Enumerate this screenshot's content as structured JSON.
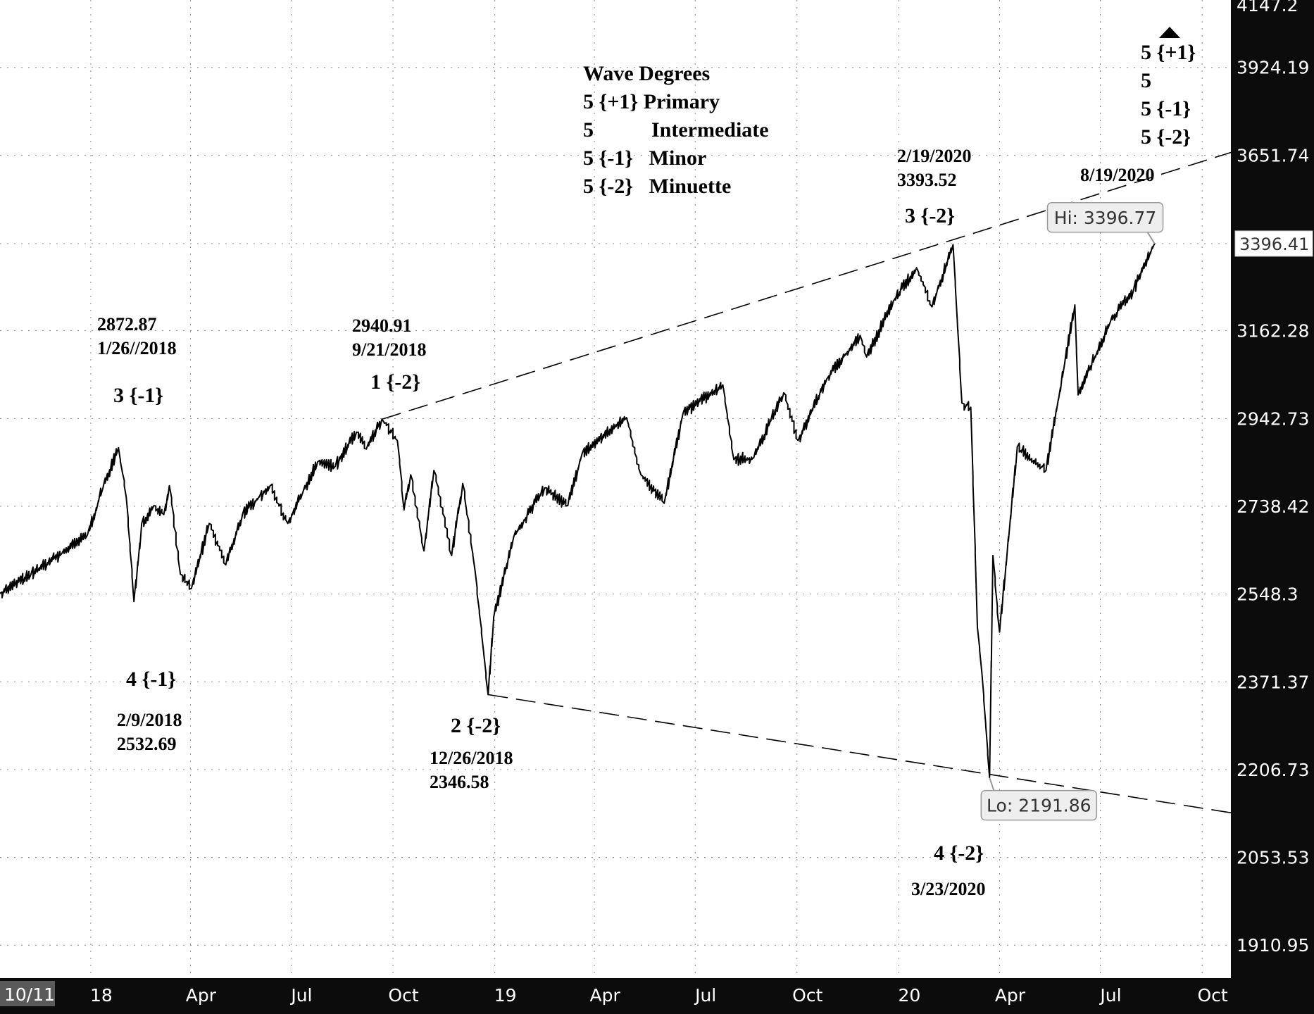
{
  "colors": {
    "background": "#ffffff",
    "price_line": "#000000",
    "grid": "#8c8c8c",
    "axis_bar": "#0c0c0c",
    "axis_text": "#ffffff",
    "callout_bg": "#eeeeee",
    "callout_border": "#9a9a9a"
  },
  "chart_data": {
    "type": "line",
    "title": "",
    "xlabel": "",
    "ylabel": "",
    "y_scale": "log",
    "ylim": [
      1860,
      4147.2
    ],
    "xlim": [
      "2017-10-11",
      "2020-10-27"
    ],
    "grid": true,
    "x_ticks": [
      {
        "date": "2017-10-11",
        "label": "10/11"
      },
      {
        "date": "2018-01-01",
        "label": "18"
      },
      {
        "date": "2018-04-01",
        "label": "Apr"
      },
      {
        "date": "2018-07-01",
        "label": "Jul"
      },
      {
        "date": "2018-10-01",
        "label": "Oct"
      },
      {
        "date": "2019-01-01",
        "label": "19"
      },
      {
        "date": "2019-04-01",
        "label": "Apr"
      },
      {
        "date": "2019-07-01",
        "label": "Jul"
      },
      {
        "date": "2019-10-01",
        "label": "Oct"
      },
      {
        "date": "2020-01-01",
        "label": "20"
      },
      {
        "date": "2020-04-01",
        "label": "Apr"
      },
      {
        "date": "2020-07-01",
        "label": "Jul"
      },
      {
        "date": "2020-10-01",
        "label": "Oct"
      }
    ],
    "y_ticks": [
      1910.95,
      2053.53,
      2206.73,
      2371.37,
      2548.3,
      2738.42,
      2942.73,
      3162.28,
      3396.41,
      3651.74,
      3924.19,
      4147.2
    ],
    "last_price": 3396.41,
    "series": [
      {
        "values": [
          [
            "2017-10-11",
            2550
          ],
          [
            "2017-11-08",
            2590
          ],
          [
            "2017-12-06",
            2635
          ],
          [
            "2017-12-29",
            2675
          ],
          [
            "2018-01-12",
            2780
          ],
          [
            "2018-01-26",
            2872.87
          ],
          [
            "2018-02-02",
            2760
          ],
          [
            "2018-02-09",
            2532.69
          ],
          [
            "2018-02-16",
            2700
          ],
          [
            "2018-02-27",
            2740
          ],
          [
            "2018-03-08",
            2720
          ],
          [
            "2018-03-13",
            2785
          ],
          [
            "2018-03-23",
            2590
          ],
          [
            "2018-04-02",
            2560
          ],
          [
            "2018-04-18",
            2700
          ],
          [
            "2018-05-03",
            2610
          ],
          [
            "2018-05-18",
            2720
          ],
          [
            "2018-06-12",
            2785
          ],
          [
            "2018-06-28",
            2700
          ],
          [
            "2018-07-25",
            2840
          ],
          [
            "2018-08-10",
            2830
          ],
          [
            "2018-08-29",
            2910
          ],
          [
            "2018-09-07",
            2870
          ],
          [
            "2018-09-21",
            2940.91
          ],
          [
            "2018-10-05",
            2890
          ],
          [
            "2018-10-11",
            2730
          ],
          [
            "2018-10-17",
            2810
          ],
          [
            "2018-10-29",
            2640
          ],
          [
            "2018-11-07",
            2820
          ],
          [
            "2018-11-23",
            2630
          ],
          [
            "2018-12-03",
            2790
          ],
          [
            "2018-12-14",
            2600
          ],
          [
            "2018-12-26",
            2346.58
          ],
          [
            "2018-12-31",
            2500
          ],
          [
            "2019-01-18",
            2670
          ],
          [
            "2019-02-15",
            2780
          ],
          [
            "2019-03-08",
            2740
          ],
          [
            "2019-03-21",
            2860
          ],
          [
            "2019-04-30",
            2945
          ],
          [
            "2019-05-13",
            2810
          ],
          [
            "2019-06-03",
            2745
          ],
          [
            "2019-06-20",
            2955
          ],
          [
            "2019-07-26",
            3025
          ],
          [
            "2019-08-05",
            2845
          ],
          [
            "2019-08-23",
            2850
          ],
          [
            "2019-09-19",
            3005
          ],
          [
            "2019-10-02",
            2890
          ],
          [
            "2019-10-28",
            3040
          ],
          [
            "2019-11-27",
            3150
          ],
          [
            "2019-12-03",
            3095
          ],
          [
            "2019-12-27",
            3240
          ],
          [
            "2020-01-17",
            3330
          ],
          [
            "2020-01-31",
            3225
          ],
          [
            "2020-02-19",
            3393.52
          ],
          [
            "2020-02-27",
            2980
          ],
          [
            "2020-03-06",
            2970
          ],
          [
            "2020-03-12",
            2480
          ],
          [
            "2020-03-16",
            2390
          ],
          [
            "2020-03-23",
            2191.86
          ],
          [
            "2020-03-26",
            2630
          ],
          [
            "2020-04-01",
            2470
          ],
          [
            "2020-04-17",
            2875
          ],
          [
            "2020-05-13",
            2820
          ],
          [
            "2020-06-08",
            3230
          ],
          [
            "2020-06-11",
            3000
          ],
          [
            "2020-07-10",
            3185
          ],
          [
            "2020-07-31",
            3270
          ],
          [
            "2020-08-19",
            3396.41
          ]
        ]
      }
    ],
    "trendlines": [
      {
        "from": [
          "2018-09-21",
          2940.91
        ],
        "to": [
          "2020-10-27",
          3660
        ]
      },
      {
        "from": [
          "2018-12-26",
          2346.58
        ],
        "to": [
          "2020-10-27",
          2130
        ]
      }
    ],
    "callouts": [
      {
        "text": "Hi: 3396.77",
        "date": "2020-08-19",
        "value": 3396.77
      },
      {
        "text": "Lo: 2191.86",
        "date": "2020-03-23",
        "value": 2191.86
      }
    ],
    "annotations": [
      {
        "id": "legend-title",
        "text": "Wave Degrees"
      },
      {
        "id": "legend-primary",
        "text": "5 {+1} Primary"
      },
      {
        "id": "legend-int-num",
        "text": "5"
      },
      {
        "id": "legend-int-name",
        "text": "Intermediate"
      },
      {
        "id": "legend-minor",
        "text": "5 {-1}   Minor"
      },
      {
        "id": "legend-minuette",
        "text": "5 {-2}   Minuette"
      },
      {
        "id": "peak-2018-value",
        "text": "2872.87"
      },
      {
        "id": "peak-2018-date",
        "text": "1/26//2018"
      },
      {
        "id": "wave-3-minor",
        "text": "3 {-1}"
      },
      {
        "id": "wave-4-minor",
        "text": "4 {-1}"
      },
      {
        "id": "low-2018-date",
        "text": "2/9/2018"
      },
      {
        "id": "low-2018-value",
        "text": "2532.69"
      },
      {
        "id": "peak-sep-value",
        "text": "2940.91"
      },
      {
        "id": "peak-sep-date",
        "text": "9/21/2018"
      },
      {
        "id": "wave-1-minuette",
        "text": "1 {-2}"
      },
      {
        "id": "wave-2-minuette",
        "text": "2 {-2}"
      },
      {
        "id": "low-dec-date",
        "text": "12/26/2018"
      },
      {
        "id": "low-dec-value",
        "text": "2346.58"
      },
      {
        "id": "peak-2020-date",
        "text": "2/19/2020"
      },
      {
        "id": "peak-2020-value",
        "text": "3393.52"
      },
      {
        "id": "wave-3-minuette",
        "text": "3 {-2}"
      },
      {
        "id": "wave-4-minuette",
        "text": "4 {-2}"
      },
      {
        "id": "low-2020-date",
        "text": "3/23/2020"
      },
      {
        "id": "aug-date",
        "text": "8/19/2020"
      },
      {
        "id": "wave5-primary",
        "text": "5 {+1}"
      },
      {
        "id": "wave5-intermediate",
        "text": "5"
      },
      {
        "id": "wave5-minor",
        "text": "5 {-1}"
      },
      {
        "id": "wave5-minuette",
        "text": "5 {-2}"
      }
    ]
  }
}
